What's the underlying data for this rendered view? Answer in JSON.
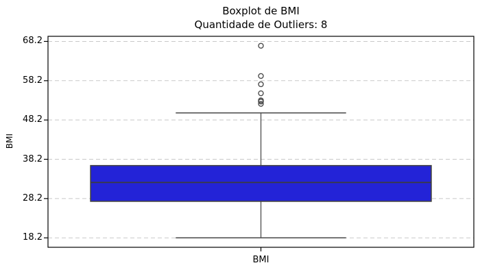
{
  "chart_data": {
    "type": "boxplot",
    "title_line1": "Boxplot de BMI",
    "title_line2": "Quantidade de Outliers: 8",
    "outlier_count": 8,
    "ylabel": "BMI",
    "xtick_labels": [
      "BMI"
    ],
    "yticks": [
      18.2,
      28.2,
      38.2,
      48.2,
      58.2,
      68.2
    ],
    "ylim": [
      15.8,
      69.5
    ],
    "xlim": [
      0.5,
      1.5
    ],
    "grid": {
      "axis": "y",
      "style": "dashed"
    },
    "series": [
      {
        "name": "BMI",
        "center_x": 1.0,
        "box_width": 0.8,
        "cap_width": 0.4,
        "q1": 27.5,
        "median": 32.3,
        "q3": 36.6,
        "whisker_low": 18.2,
        "whisker_high": 50.0,
        "outliers": [
          52.3,
          52.9,
          52.9,
          53.2,
          55.0,
          57.3,
          59.4,
          67.1
        ]
      }
    ],
    "colors": {
      "box_fill": "#2323d7",
      "box_edge": "#424242",
      "median_line": "#3c3c3c",
      "whisker": "#555555",
      "cap": "#555555",
      "outlier_edge": "#4d4d4d",
      "spine": "#000000",
      "tick": "#000000",
      "grid": "#c8c8c8",
      "background": "#ffffff"
    }
  }
}
